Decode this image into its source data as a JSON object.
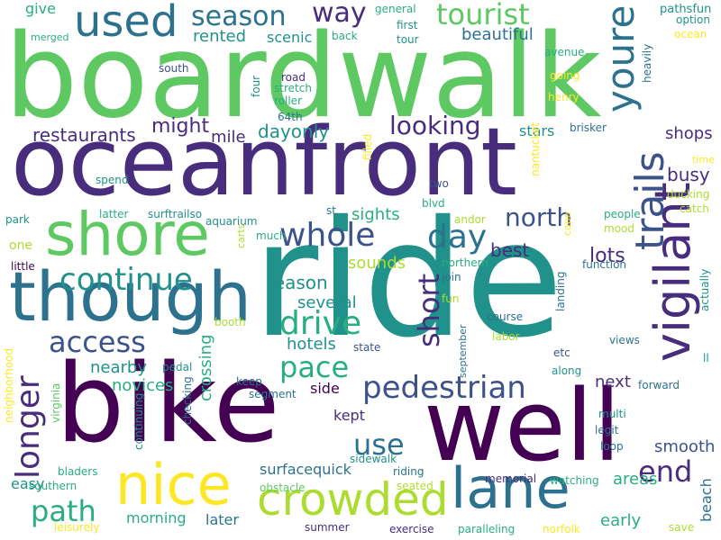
{
  "palette": {
    "dark_purple": "#440154",
    "indigo": "#472d7b",
    "blue_purple": "#3b528b",
    "steel_blue": "#2c728e",
    "teal": "#21918c",
    "green_teal": "#28ae80",
    "green": "#5ec962",
    "lime": "#addc30",
    "yellow": "#fde725",
    "background": "#ffffff"
  },
  "words": [
    "boardwalk",
    "oceanfront",
    "ride",
    "bike",
    "well",
    "shore",
    "though",
    "nice",
    "lane",
    "crowded",
    "used",
    "season",
    "way",
    "tourist",
    "youre",
    "vigilant",
    "trails",
    "pedestrian",
    "whole",
    "day",
    "continue",
    "north",
    "access",
    "drive",
    "pace",
    "longer",
    "short",
    "path",
    "use",
    "end",
    "looking",
    "restaurants",
    "might",
    "mile",
    "dayonly",
    "scenic",
    "rented",
    "beautiful",
    "shops",
    "busy",
    "stars",
    "lots",
    "best",
    "several",
    "hotels",
    "reason",
    "sights",
    "sounds",
    "nearby",
    "novices",
    "crossing",
    "side",
    "kept",
    "next",
    "smooth",
    "areas",
    "early",
    "beach",
    "morning",
    "later",
    "surfacequick",
    "easy",
    "southern",
    "give",
    "merged",
    "general",
    "first",
    "tour",
    "back",
    "avenue",
    "going",
    "henry",
    "heavily",
    "pathsfun",
    "option",
    "ocean",
    "south",
    "four",
    "road",
    "stretch",
    "roller",
    "64th",
    "brisker",
    "time",
    "ducking",
    "catch",
    "spend",
    "filled",
    "two",
    "blvd",
    "nantucket",
    "people",
    "mood",
    "cape",
    "latter",
    "surftrailso",
    "aquarium",
    "st",
    "park",
    "much",
    "carts",
    "andor",
    "northern",
    "function",
    "one",
    "little",
    "join",
    "landing",
    "actually",
    "fun",
    "september",
    "course",
    "labor",
    "state",
    "booth",
    "pedal",
    "views",
    "ll",
    "etc",
    "along",
    "forward",
    "neighborhood",
    "virginia",
    "keep",
    "segment",
    "checking",
    "continuing",
    "multi",
    "legit",
    "loop",
    "bladers",
    "sidewalk",
    "riding",
    "memorial",
    "watching",
    "obstacle",
    "seated",
    "leisurely",
    "summer",
    "exercise",
    "paralleling",
    "norfolk",
    "save"
  ]
}
